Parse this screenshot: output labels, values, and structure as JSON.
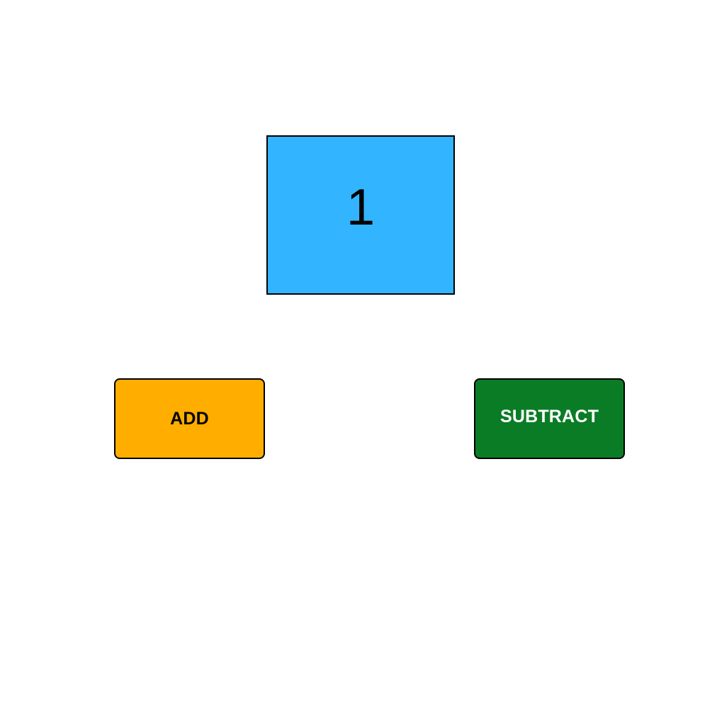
{
  "counter": {
    "value": "1",
    "background_color": "#33b4ff"
  },
  "buttons": {
    "add_label": "ADD",
    "add_color": "#ffae00",
    "subtract_label": "SUBTRACT",
    "subtract_color": "#0b7c26"
  }
}
